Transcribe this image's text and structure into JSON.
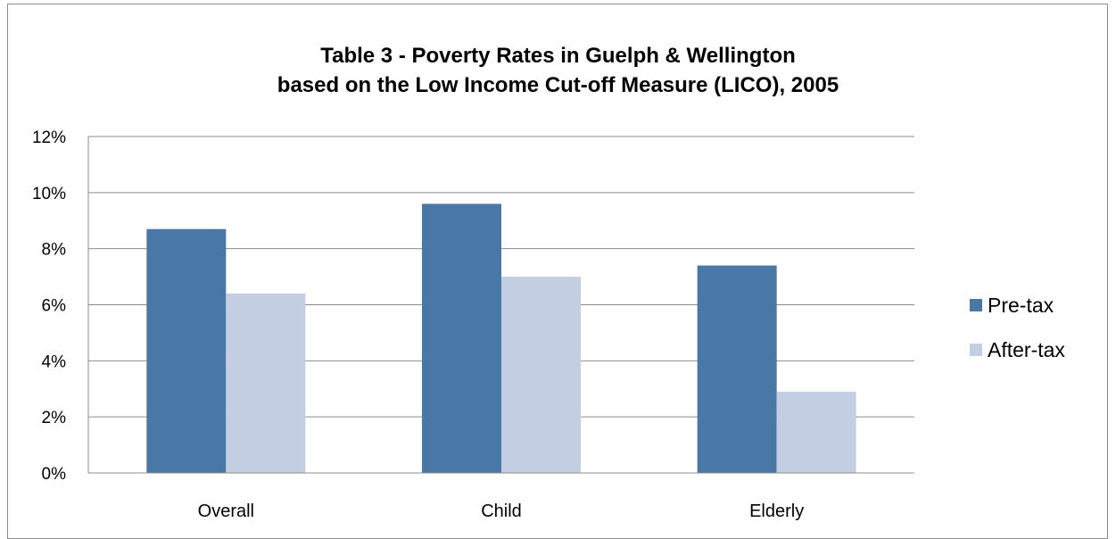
{
  "chart_data": {
    "type": "bar",
    "title_line1": "Table 3 - Poverty Rates in Guelph & Wellington",
    "title_line2": "based on the Low Income Cut-off Measure (LICO), 2005",
    "categories": [
      "Overall",
      "Child",
      "Elderly"
    ],
    "series": [
      {
        "name": "Pre-tax",
        "color": "#4a78a6",
        "values": [
          8.7,
          9.6,
          7.4
        ]
      },
      {
        "name": "After-tax",
        "color": "#c3cee3",
        "values": [
          6.4,
          7.0,
          2.9
        ]
      }
    ],
    "ylim": [
      0,
      12
    ],
    "yticks": [
      "0%",
      "2%",
      "4%",
      "6%",
      "8%",
      "10%",
      "12%"
    ],
    "grid": true,
    "legend_position": "right"
  }
}
